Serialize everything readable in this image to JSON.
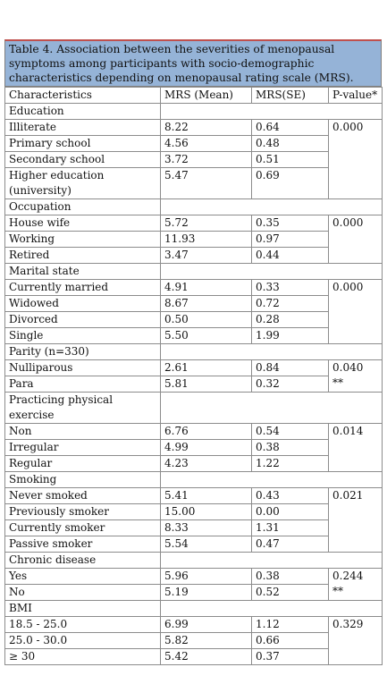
{
  "table": {
    "title": "Table 4. Association between the severities of menopausal symptoms among participants with socio-demographic characteristics depending on menopausal rating scale (MRS).",
    "header": [
      "Characteristics",
      "MRS (Mean)",
      "MRS(SE)",
      "P-value*"
    ],
    "sections": [
      {
        "label": "Education",
        "pvalue": "0.000",
        "rows": [
          [
            "Illiterate",
            "8.22",
            "0.64"
          ],
          [
            "Primary school",
            "4.56",
            "0.48"
          ],
          [
            "Secondary school",
            "3.72",
            "0.51"
          ],
          [
            "Higher education (university)",
            "5.47",
            "0.69"
          ]
        ]
      },
      {
        "label": "Occupation",
        "pvalue": "0.000",
        "rows": [
          [
            "House wife",
            "5.72",
            "0.35"
          ],
          [
            "Working",
            "11.93",
            "0.97"
          ],
          [
            "Retired",
            "3.47",
            "0.44"
          ]
        ]
      },
      {
        "label": "Marital state",
        "pvalue": "0.000",
        "rows": [
          [
            "Currently married",
            "4.91",
            "0.33"
          ],
          [
            "Widowed",
            "8.67",
            "0.72"
          ],
          [
            "Divorced",
            "0.50",
            "0.28"
          ],
          [
            "Single",
            "5.50",
            "1.99"
          ]
        ]
      },
      {
        "label": "Parity (n=330)",
        "pvalue": "0.040",
        "note": "**",
        "rows": [
          [
            "Nulliparous",
            "2.61",
            "0.84"
          ],
          [
            "Para",
            "5.81",
            "0.32"
          ]
        ]
      },
      {
        "label": "Practicing physical exercise",
        "pvalue": "0.014",
        "rows": [
          [
            "Non",
            "6.76",
            "0.54"
          ],
          [
            "Irregular",
            "4.99",
            "0.38"
          ],
          [
            "Regular",
            "4.23",
            "1.22"
          ]
        ]
      },
      {
        "label": "Smoking",
        "pvalue": "0.021",
        "rows": [
          [
            "Never smoked",
            "5.41",
            "0.43"
          ],
          [
            "Previously smoker",
            "15.00",
            "0.00"
          ],
          [
            "Currently smoker",
            "8.33",
            "1.31"
          ],
          [
            "Passive smoker",
            "5.54",
            "0.47"
          ]
        ]
      },
      {
        "label": "Chronic disease",
        "pvalue": "0.244",
        "note": "**",
        "rows": [
          [
            "Yes",
            "5.96",
            "0.38"
          ],
          [
            "No",
            "5.19",
            "0.52"
          ]
        ]
      },
      {
        "label": "BMI",
        "pvalue": "0.329",
        "rows": [
          [
            "18.5 - 25.0",
            "6.99",
            "1.12"
          ],
          [
            "25.0 - 30.0",
            "5.82",
            "0.66"
          ],
          [
            "≥ 30",
            "5.42",
            "0.37"
          ]
        ]
      }
    ]
  }
}
